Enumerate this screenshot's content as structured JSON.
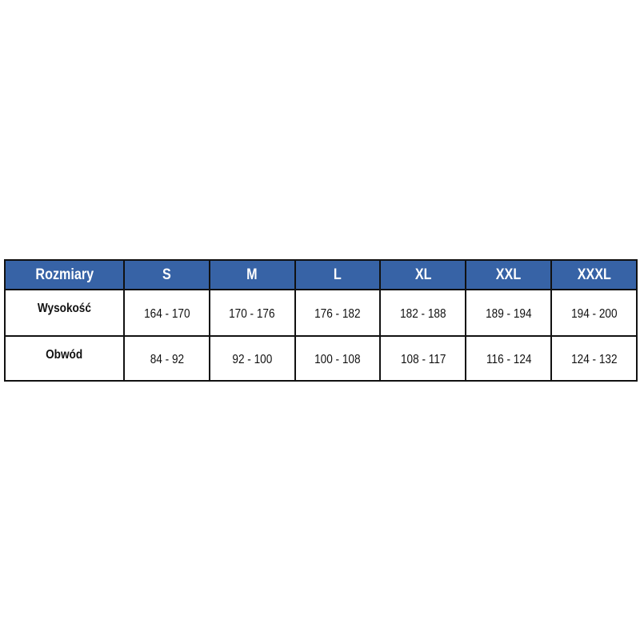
{
  "table": {
    "header": [
      "Rozmiary",
      "S",
      "M",
      "L",
      "XL",
      "XXL",
      "XXXL"
    ],
    "rows": [
      {
        "label": "Wysokość",
        "values": [
          "164 - 170",
          "170 - 176",
          "176 - 182",
          "182 - 188",
          "189 - 194",
          "194 - 200"
        ]
      },
      {
        "label": "Obwód",
        "values": [
          "84 - 92",
          "92 - 100",
          "100 - 108",
          "108 - 117",
          "116 - 124",
          "124 - 132"
        ]
      }
    ]
  },
  "colors": {
    "header_bg": "#3763a6",
    "header_text": "#ffffff",
    "border": "#111111"
  }
}
